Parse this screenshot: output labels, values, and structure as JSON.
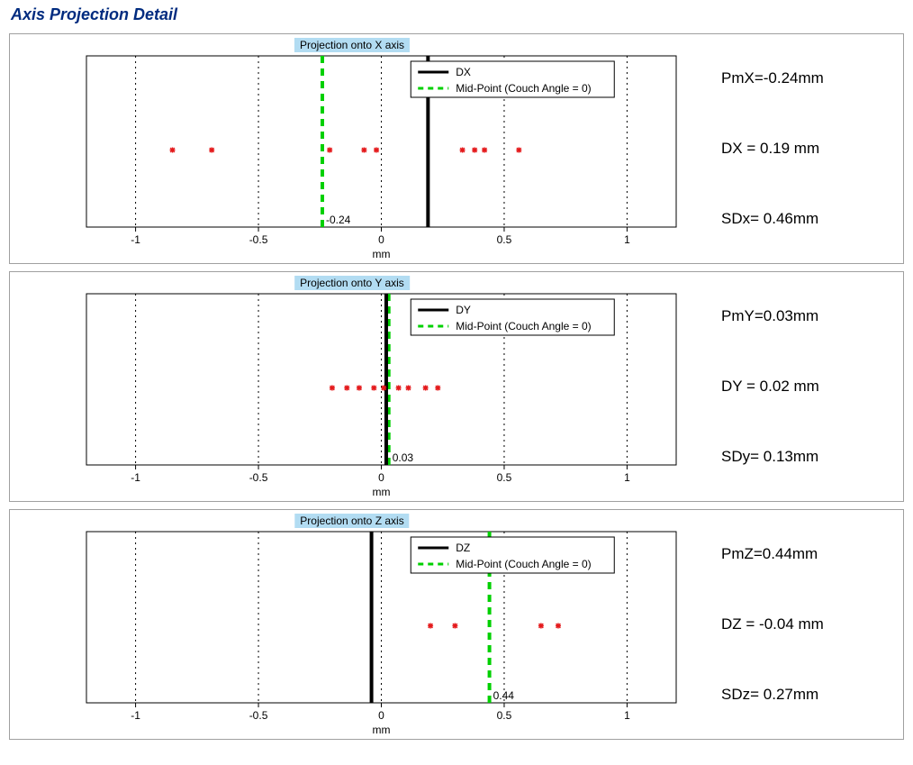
{
  "pageTitle": "Axis Projection Detail",
  "common": {
    "xlabel": "mm",
    "label_fontsize": 12,
    "xlim": [
      -1.2,
      1.2
    ],
    "xticks": [
      -1,
      -0.5,
      0,
      0.5,
      1
    ],
    "grid_dash": "2,4",
    "grid_color": "#000000",
    "axis_color": "#000000",
    "marker_color": "#e41a1c",
    "marker_symbol": "*",
    "marker_size": 6,
    "dx_line_color": "#000000",
    "dx_line_width": 4,
    "midpoint_color": "#00d000",
    "midpoint_width": 4,
    "midpoint_dash": "8,6",
    "legend_bg": "#ffffff",
    "legend_border": "#000000",
    "title_band_bg": "#b2dcf2",
    "text_color": "#000000"
  },
  "charts": [
    {
      "id": "x",
      "title": "Projection onto X axis",
      "legend": [
        "DX",
        "Mid-Point (Couch Angle = 0)"
      ],
      "points": [
        -0.85,
        -0.69,
        -0.21,
        -0.07,
        -0.02,
        0.33,
        0.38,
        0.42,
        0.56
      ],
      "dx_line_x": 0.19,
      "midpoint_x": -0.24,
      "midpoint_label": "-0.24",
      "stats": [
        "PmX=-0.24mm",
        "DX = 0.19 mm",
        "SDx= 0.46mm"
      ]
    },
    {
      "id": "y",
      "title": "Projection onto Y axis",
      "legend": [
        "DY",
        "Mid-Point (Couch Angle = 0)"
      ],
      "points": [
        -0.2,
        -0.14,
        -0.09,
        -0.03,
        0.01,
        0.07,
        0.11,
        0.18,
        0.23
      ],
      "dx_line_x": 0.02,
      "midpoint_x": 0.03,
      "midpoint_label": "0.03",
      "stats": [
        "PmY=0.03mm",
        "DY = 0.02 mm",
        "SDy= 0.13mm"
      ]
    },
    {
      "id": "z",
      "title": "Projection onto Z axis",
      "legend": [
        "DZ",
        "Mid-Point (Couch Angle = 0)"
      ],
      "points": [
        0.2,
        0.3,
        0.65,
        0.72
      ],
      "dx_line_x": -0.04,
      "midpoint_x": 0.44,
      "midpoint_label": "0.44",
      "stats": [
        "PmZ=0.44mm",
        "DZ = -0.04 mm",
        "SDz= 0.27mm"
      ]
    }
  ]
}
